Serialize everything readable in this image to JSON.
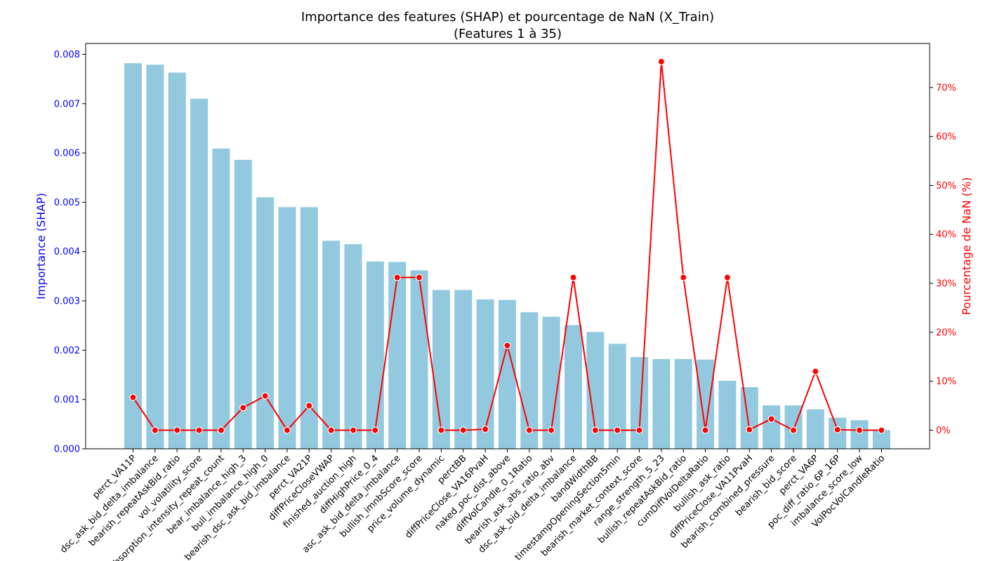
{
  "chart_data": {
    "type": "bar",
    "title_line1": "Importance des features (SHAP) et pourcentage de NaN (X_Train)",
    "title_line2": "(Features 1 à 35)",
    "ylabel_left": "Importance (SHAP)",
    "ylabel_right": "Pourcentage de NaN (%)",
    "ylim_left": [
      0,
      0.00822
    ],
    "ylim_right": [
      -3.8,
      79
    ],
    "yticks_left": [
      "0.000",
      "0.001",
      "0.002",
      "0.003",
      "0.004",
      "0.005",
      "0.006",
      "0.007",
      "0.008"
    ],
    "yticks_left_values": [
      0,
      0.001,
      0.002,
      0.003,
      0.004,
      0.005,
      0.006,
      0.007,
      0.008
    ],
    "yticks_right": [
      "0%",
      "10%",
      "20%",
      "30%",
      "40%",
      "50%",
      "60%",
      "70%"
    ],
    "yticks_right_values": [
      0,
      10,
      20,
      30,
      40,
      50,
      60,
      70
    ],
    "grid": false,
    "colors": {
      "bars": "#92c9de",
      "line": "#ff0000",
      "left_axis": "#0000ff",
      "right_axis": "#ff0000"
    },
    "categories": [
      "perct_VA11P",
      "dsc_ask_bid_delta_imbalance",
      "bearish_repeatAskBid_ratio",
      "vol_volatility_score",
      "absorption_intensity_repeat_count",
      "bear_imbalance_high_3",
      "bull_imbalance_high_0",
      "bearish_dsc_ask_bid_imbalance",
      "perct_VA21P",
      "diffPriceCloseVWAP",
      "finished_auction_high",
      "diffHighPrice_0_4",
      "asc_ask_bid_delta_imbalance",
      "bullish_imnbScore_score",
      "price_volume_dynamic",
      "perctBB",
      "diffPriceClose_VA16PvaH",
      "naked_poc_dist_above",
      "diffVolCandle_0_1Ratio",
      "bearish_ask_abs_ratio_abv",
      "dsc_ask_bid_delta_imbalance",
      "bandWidthBB",
      "timestampOpeningSection5min",
      "bearish_market_context_score",
      "range_strength_5_23",
      "bullish_repeatAskBid_ratio",
      "cumDiffVolDeltaRatio",
      "bullish_ask_ratio",
      "diffPriceClose_VA11PvaH",
      "bearish_combined_pressure",
      "bearish_bid_score",
      "perct_VA6P",
      "poc_diff_ratio_6P_16P",
      "imbalance_score_low",
      "VolPocVolCandleRatio"
    ],
    "series": [
      {
        "name": "Importance (SHAP)",
        "values": [
          0.00782,
          0.00779,
          0.00763,
          0.0071,
          0.00609,
          0.00586,
          0.0051,
          0.0049,
          0.0049,
          0.00422,
          0.00415,
          0.0038,
          0.00379,
          0.00362,
          0.00322,
          0.00322,
          0.00303,
          0.00302,
          0.00277,
          0.00268,
          0.00251,
          0.00237,
          0.00213,
          0.00186,
          0.00182,
          0.00182,
          0.00181,
          0.00138,
          0.00125,
          0.00088,
          0.00088,
          0.0008,
          0.00063,
          0.00058,
          0.00038
        ]
      },
      {
        "name": "Pourcentage de NaN (%)",
        "values": [
          6.7,
          0,
          0,
          0,
          0,
          4.6,
          7.0,
          0,
          5.0,
          0,
          0,
          0,
          31.2,
          31.2,
          0,
          0,
          0.2,
          17.3,
          0,
          0,
          31.2,
          0,
          0,
          0,
          75.3,
          31.2,
          0,
          31.2,
          0.1,
          2.3,
          0,
          12.0,
          0.1,
          0,
          0
        ]
      }
    ]
  }
}
